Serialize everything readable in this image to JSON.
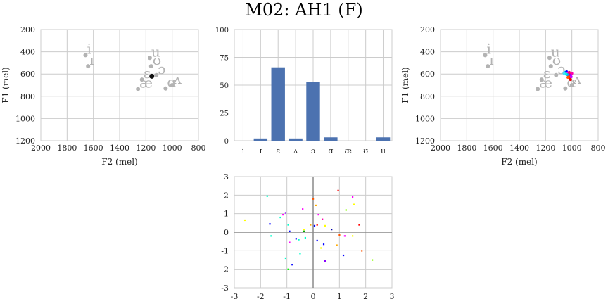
{
  "title": "M02: AH1 (F)",
  "colors": {
    "grid": "#cccccc",
    "axis": "#cccccc",
    "gray": "#b3b3b3",
    "bar": "#4c72b0",
    "current": "#111111",
    "zero_line": "#8a8a8a",
    "text": "#222222"
  },
  "chart_data": [
    {
      "id": "vowel-left",
      "type": "scatter",
      "xlabel": "F2 (mel)",
      "ylabel": "F1 (mel)",
      "xlim": [
        2000,
        800
      ],
      "ylim": [
        1200,
        200
      ],
      "xticks": [
        2000,
        1800,
        1600,
        1400,
        1200,
        1000,
        800
      ],
      "yticks": [
        200,
        400,
        600,
        800,
        1000,
        1200
      ],
      "grid": true,
      "vowels": [
        {
          "label": "i",
          "x": 1660,
          "y": 430
        },
        {
          "label": "ɪ",
          "x": 1640,
          "y": 530
        },
        {
          "label": "u",
          "x": 1170,
          "y": 455
        },
        {
          "label": "ʊ",
          "x": 1160,
          "y": 530
        },
        {
          "label": "ɔ",
          "x": 1120,
          "y": 610
        },
        {
          "label": "ɛ",
          "x": 1230,
          "y": 650
        },
        {
          "label": "æ",
          "x": 1260,
          "y": 735
        },
        {
          "label": "ɑ",
          "x": 1050,
          "y": 730
        },
        {
          "label": "ʌ",
          "x": 1000,
          "y": 700
        }
      ],
      "current": {
        "x": 1155,
        "y": 620
      }
    },
    {
      "id": "bar-middle",
      "type": "bar",
      "categories": [
        "i",
        "ɪ",
        "ɛ",
        "ʌ",
        "ɔ",
        "ɑ",
        "æ",
        "ʊ",
        "u"
      ],
      "values": [
        0,
        2,
        66,
        2,
        53,
        3,
        0,
        0,
        3
      ],
      "ylim": [
        0,
        100
      ],
      "yticks": [
        0,
        25,
        50,
        75,
        100
      ],
      "grid": true
    },
    {
      "id": "vowel-right",
      "type": "scatter",
      "xlabel": "F2 (mel)",
      "ylabel": "F1 (mel)",
      "xlim": [
        2000,
        800
      ],
      "ylim": [
        1200,
        200
      ],
      "xticks": [
        2000,
        1800,
        1600,
        1400,
        1200,
        1000,
        800
      ],
      "yticks": [
        200,
        400,
        600,
        800,
        1000,
        1200
      ],
      "grid": true,
      "vowels": [
        {
          "label": "i",
          "x": 1660,
          "y": 430
        },
        {
          "label": "ɪ",
          "x": 1640,
          "y": 530
        },
        {
          "label": "u",
          "x": 1170,
          "y": 455
        },
        {
          "label": "ʊ",
          "x": 1160,
          "y": 530
        },
        {
          "label": "ɔ",
          "x": 1120,
          "y": 610
        },
        {
          "label": "ɛ",
          "x": 1230,
          "y": 650
        },
        {
          "label": "æ",
          "x": 1260,
          "y": 735
        },
        {
          "label": "ɑ",
          "x": 1050,
          "y": 730
        },
        {
          "label": "ʌ",
          "x": 1000,
          "y": 700
        }
      ],
      "cluster": [
        {
          "x": 1050,
          "y": 585,
          "c": "#00c8ff"
        },
        {
          "x": 1040,
          "y": 580,
          "c": "#0000ff"
        },
        {
          "x": 1030,
          "y": 590,
          "c": "#ff00ff"
        },
        {
          "x": 1020,
          "y": 600,
          "c": "#ff0000"
        },
        {
          "x": 1010,
          "y": 610,
          "c": "#8800ff"
        },
        {
          "x": 1000,
          "y": 595,
          "c": "#ff00aa"
        },
        {
          "x": 1025,
          "y": 620,
          "c": "#ff3300"
        },
        {
          "x": 1015,
          "y": 640,
          "c": "#ff2200"
        },
        {
          "x": 1035,
          "y": 605,
          "c": "#00aaff"
        },
        {
          "x": 1005,
          "y": 625,
          "c": "#cc00ff"
        },
        {
          "x": 1045,
          "y": 600,
          "c": "#00ffcc"
        },
        {
          "x": 1020,
          "y": 585,
          "c": "#ff0066"
        },
        {
          "x": 1030,
          "y": 630,
          "c": "#ff5500"
        },
        {
          "x": 1010,
          "y": 650,
          "c": "#ee0000"
        },
        {
          "x": 1060,
          "y": 595,
          "c": "#44ddff"
        }
      ]
    },
    {
      "id": "scatter-bottom",
      "type": "scatter",
      "xlim": [
        -3,
        3
      ],
      "ylim": [
        -3,
        3
      ],
      "xticks": [
        -3,
        -2,
        -1,
        0,
        1,
        2,
        3
      ],
      "yticks": [
        -3,
        -2,
        -1,
        0,
        1,
        2,
        3
      ],
      "grid": true,
      "points": [
        {
          "x": -2.6,
          "y": 0.65,
          "c": "#ffff00"
        },
        {
          "x": -1.75,
          "y": 1.95,
          "c": "#00ffcc"
        },
        {
          "x": -1.65,
          "y": 0.45,
          "c": "#0000ff"
        },
        {
          "x": -1.6,
          "y": -0.2,
          "c": "#00ffcc"
        },
        {
          "x": -1.25,
          "y": 0.8,
          "c": "#00ffcc"
        },
        {
          "x": -1.15,
          "y": 0.95,
          "c": "#ff00ff"
        },
        {
          "x": -1.05,
          "y": 1.05,
          "c": "#8800ff"
        },
        {
          "x": -1.05,
          "y": -1.4,
          "c": "#00ffcc"
        },
        {
          "x": -0.95,
          "y": 0.4,
          "c": "#00ffcc"
        },
        {
          "x": -0.9,
          "y": 0.05,
          "c": "#0000ff"
        },
        {
          "x": -0.9,
          "y": -0.55,
          "c": "#ff00ff"
        },
        {
          "x": -0.95,
          "y": -2.0,
          "c": "#00ff00"
        },
        {
          "x": -0.8,
          "y": -1.75,
          "c": "#0000ff"
        },
        {
          "x": -0.65,
          "y": -0.35,
          "c": "#0000ff"
        },
        {
          "x": -0.55,
          "y": -0.4,
          "c": "#00ffcc"
        },
        {
          "x": -0.5,
          "y": -1.15,
          "c": "#00ffcc"
        },
        {
          "x": -0.4,
          "y": 1.25,
          "c": "#ff00ff"
        },
        {
          "x": -0.35,
          "y": 0.15,
          "c": "#ffff00"
        },
        {
          "x": -0.35,
          "y": 0.05,
          "c": "#00aa00"
        },
        {
          "x": -0.3,
          "y": -0.3,
          "c": "#00ffcc"
        },
        {
          "x": -0.1,
          "y": 0.4,
          "c": "#ffaa00"
        },
        {
          "x": 0.0,
          "y": 1.8,
          "c": "#ff5500"
        },
        {
          "x": 0.05,
          "y": 0.35,
          "c": "#0000ff"
        },
        {
          "x": 0.1,
          "y": 1.45,
          "c": "#ffaa00"
        },
        {
          "x": 0.15,
          "y": 0.4,
          "c": "#ff0000"
        },
        {
          "x": 0.2,
          "y": 0.95,
          "c": "#ff00ff"
        },
        {
          "x": 0.15,
          "y": -0.45,
          "c": "#0000ff"
        },
        {
          "x": 0.3,
          "y": -0.85,
          "c": "#ffff00"
        },
        {
          "x": 0.35,
          "y": 0.7,
          "c": "#ff00aa"
        },
        {
          "x": 0.4,
          "y": -0.65,
          "c": "#0000ff"
        },
        {
          "x": 0.45,
          "y": 0.35,
          "c": "#ffff00"
        },
        {
          "x": 0.45,
          "y": -1.55,
          "c": "#8800ff"
        },
        {
          "x": 0.7,
          "y": 0.15,
          "c": "#0000aa"
        },
        {
          "x": 0.95,
          "y": 2.25,
          "c": "#ff0000"
        },
        {
          "x": 1.0,
          "y": -0.15,
          "c": "#ff5500"
        },
        {
          "x": 1.15,
          "y": -1.25,
          "c": "#0000ff"
        },
        {
          "x": 1.2,
          "y": -0.2,
          "c": "#ff00ff"
        },
        {
          "x": 1.25,
          "y": 1.2,
          "c": "#88ff00"
        },
        {
          "x": 1.5,
          "y": 1.9,
          "c": "#ff00ff"
        },
        {
          "x": 1.5,
          "y": -0.2,
          "c": "#ffff00"
        },
        {
          "x": 1.55,
          "y": 1.5,
          "c": "#ffff00"
        },
        {
          "x": 1.75,
          "y": 0.4,
          "c": "#ff0000"
        },
        {
          "x": 1.85,
          "y": -1.0,
          "c": "#ff5500"
        },
        {
          "x": 2.25,
          "y": -1.5,
          "c": "#88ff00"
        },
        {
          "x": 0.9,
          "y": -0.7,
          "c": "#ffaa00"
        }
      ]
    }
  ]
}
